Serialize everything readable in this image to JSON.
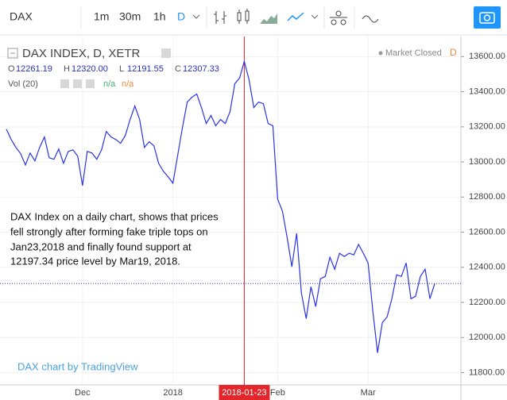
{
  "toolbar": {
    "symbol": "DAX",
    "intervals": [
      "1m",
      "30m",
      "1h",
      "D"
    ]
  },
  "chart_data": {
    "type": "line",
    "title": "DAX INDEX, D, XETR",
    "ohlc": [
      {
        "label": "O",
        "value": "12261.19"
      },
      {
        "label": "H",
        "value": "12320.00"
      },
      {
        "label": "L",
        "value": "12191.55"
      },
      {
        "label": "C",
        "value": "12307.33"
      }
    ],
    "volume": {
      "label": "Vol (20)",
      "values": [
        "n/a",
        "n/a"
      ]
    },
    "status": "Market Closed",
    "status_badge": "D",
    "annotation": [
      "DAX Index on a daily chart, shows that prices",
      "fell strongly after forming fake triple tops on",
      "Jan23,2018 and finally found support at",
      "12197.34 price level by Mar19, 2018."
    ],
    "credit": "DAX chart by TradingView",
    "crosshair": "2018-01-23",
    "last_price": 12307.33,
    "color": "#2b33e6",
    "grid": true,
    "categories": [
      null,
      null,
      null,
      null,
      null,
      null,
      null,
      null,
      null,
      null,
      null,
      null,
      null,
      null,
      null,
      null,
      "Dec",
      null,
      null,
      null,
      null,
      null,
      null,
      null,
      null,
      null,
      null,
      null,
      null,
      null,
      null,
      null,
      null,
      null,
      null,
      "2018",
      null,
      null,
      null,
      null,
      null,
      null,
      null,
      null,
      null,
      null,
      null,
      null,
      null,
      null,
      "2018-01-23",
      null,
      null,
      null,
      null,
      null,
      null,
      "Feb",
      null,
      null,
      null,
      null,
      null,
      null,
      null,
      null,
      null,
      null,
      null,
      null,
      null,
      null,
      null,
      null,
      null,
      null,
      "Mar",
      null,
      null,
      null,
      null,
      null,
      null,
      null,
      null,
      null,
      null,
      null,
      null,
      null,
      null
    ],
    "values": [
      13187,
      13128,
      13083,
      13047,
      12983,
      13051,
      13006,
      13083,
      13142,
      13024,
      13015,
      13074,
      12992,
      13060,
      13069,
      13033,
      12865,
      13060,
      13051,
      13015,
      13069,
      13174,
      13142,
      13128,
      13106,
      13151,
      13242,
      13319,
      13242,
      13083,
      13115,
      13092,
      12992,
      12947,
      12915,
      12879,
      13038,
      13196,
      13341,
      13369,
      13387,
      13310,
      13219,
      13265,
      13206,
      13242,
      13219,
      13287,
      13446,
      13478,
      13573,
      13468,
      13310,
      13341,
      13332,
      13219,
      13206,
      12788,
      12720,
      12571,
      12403,
      12593,
      12253,
      12108,
      12289,
      12176,
      12335,
      12348,
      12457,
      12389,
      12480,
      12462,
      12480,
      12471,
      12530,
      12480,
      12425,
      12153,
      11913,
      12085,
      12117,
      12221,
      12357,
      12348,
      12425,
      12221,
      12235,
      12348,
      12389,
      12221,
      12307
    ],
    "ylim": [
      11730,
      13710
    ],
    "yticks": [
      {
        "value": 11800,
        "label": "11800.00"
      },
      {
        "value": 12000,
        "label": "12000.00"
      },
      {
        "value": 12200,
        "label": "12200.00"
      },
      {
        "value": 12400,
        "label": "12400.00"
      },
      {
        "value": 12600,
        "label": "12600.00"
      },
      {
        "value": 12800,
        "label": "12800.00"
      },
      {
        "value": 13000,
        "label": "13000.00"
      },
      {
        "value": 13200,
        "label": "13200.00"
      },
      {
        "value": 13400,
        "label": "13400.00"
      },
      {
        "value": 13600,
        "label": "13600.00"
      }
    ]
  }
}
